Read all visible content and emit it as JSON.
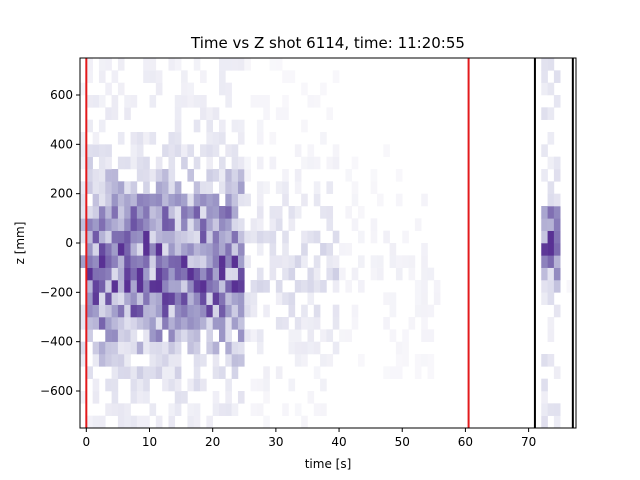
{
  "chart_data": {
    "type": "heatmap",
    "title": "Time vs Z shot 6114, time: 11:20:55",
    "xlabel": "time [s]",
    "ylabel": "z [mm]",
    "xlim": [
      -1.0,
      77.5
    ],
    "ylim": [
      -750,
      750
    ],
    "xticks": [
      0,
      10,
      20,
      30,
      40,
      50,
      60,
      70
    ],
    "yticks": [
      -600,
      -400,
      -200,
      0,
      200,
      400,
      600
    ],
    "colormap": "Purples",
    "bin_width_s": 1.0,
    "bin_height_mm": 50,
    "vlines": [
      {
        "x": 0,
        "color": "#e31a1c"
      },
      {
        "x": 60.5,
        "color": "#e31a1c"
      },
      {
        "x": 71,
        "color": "#000000"
      },
      {
        "x": 77,
        "color": "#000000"
      }
    ],
    "density_profile": {
      "description_time_bins": "activity high between 0 and 25 s, decaying to 55 s, near-empty 56-70 s, burst near 72-74 s",
      "peak_z_mm": -100,
      "burst_peak": {
        "x": 73.5,
        "z": 0
      }
    }
  }
}
